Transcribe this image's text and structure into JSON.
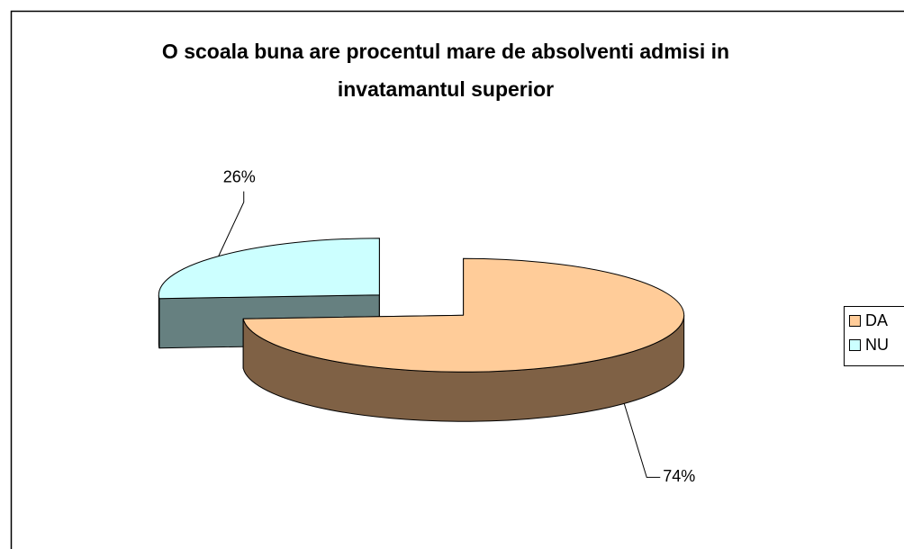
{
  "chart_data": {
    "type": "pie",
    "title": "O scoala buna are procentul mare de absolventi admisi in invatamantul superior",
    "categories": [
      "DA",
      "NU"
    ],
    "values": [
      74,
      26
    ],
    "value_labels": [
      "74%",
      "26%"
    ],
    "colors": [
      "#ffcc99",
      "#ccffff"
    ],
    "side_colors": [
      "#7f6145",
      "#668080"
    ],
    "legend": "right"
  }
}
